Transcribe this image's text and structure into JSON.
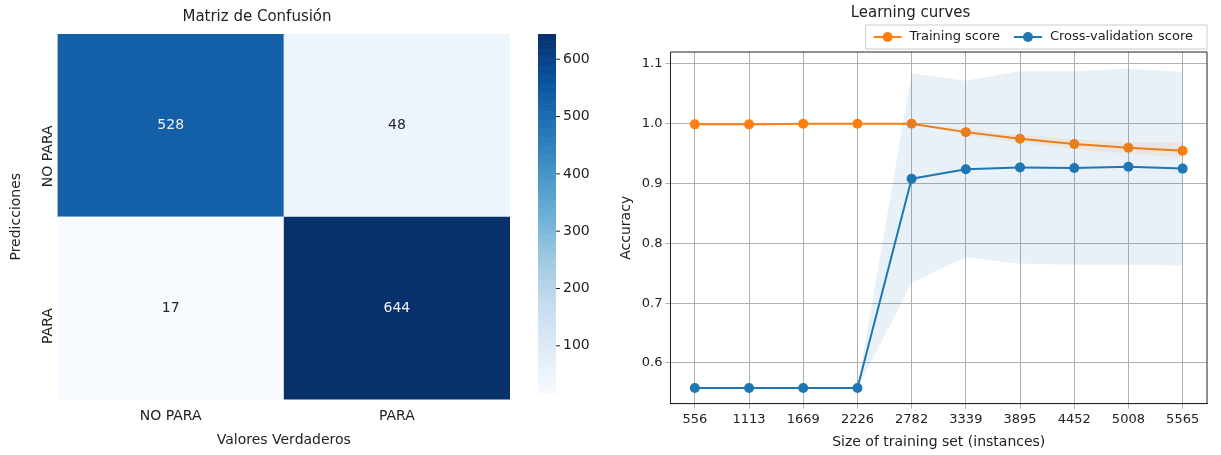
{
  "chart_data": [
    {
      "type": "heatmap",
      "title": "Matriz de Confusión",
      "xlabel": "Valores Verdaderos",
      "ylabel": "Predicciones",
      "categories": [
        "NO PARA",
        "PARA"
      ],
      "y_categories": [
        "NO PARA",
        "PARA"
      ],
      "cells": [
        [
          528,
          48
        ],
        [
          17,
          644
        ]
      ],
      "clim": [
        17,
        644
      ],
      "cticks": [
        100,
        200,
        300,
        400,
        500,
        600
      ],
      "data_labels": true
    },
    {
      "type": "line",
      "title": "Learning curves",
      "xlabel": "Size of training set (instances)",
      "ylabel": "Accuracy",
      "x": [
        556,
        1113,
        1669,
        2226,
        2782,
        3339,
        3895,
        4452,
        5008,
        5565
      ],
      "series": [
        {
          "name": "Training score",
          "color": "#ff7f0e",
          "values": [
            0.999,
            0.999,
            1.0,
            1.0,
            1.0,
            0.986,
            0.975,
            0.966,
            0.96,
            0.955
          ],
          "lower": [
            0.998,
            0.998,
            0.999,
            0.999,
            0.999,
            0.982,
            0.968,
            0.958,
            0.95,
            0.944
          ],
          "upper": [
            1.0,
            1.0,
            1.0,
            1.0,
            1.0,
            0.99,
            0.981,
            0.974,
            0.969,
            0.969
          ]
        },
        {
          "name": "Cross-validation score",
          "color": "#1f77b4",
          "values": [
            0.558,
            0.558,
            0.558,
            0.558,
            0.908,
            0.924,
            0.927,
            0.926,
            0.928,
            0.925
          ],
          "lower": [
            0.557,
            0.557,
            0.557,
            0.557,
            0.734,
            0.777,
            0.766,
            0.764,
            0.764,
            0.763
          ],
          "upper": [
            0.559,
            0.559,
            0.559,
            0.559,
            1.084,
            1.072,
            1.088,
            1.088,
            1.092,
            1.087
          ]
        }
      ],
      "xlim": [
        306,
        5815
      ],
      "ylim": [
        0.532,
        1.12
      ],
      "xticks": [
        556,
        1113,
        1669,
        2226,
        2782,
        3339,
        3895,
        4452,
        5008,
        5565
      ],
      "yticks": [
        0.6,
        0.7,
        0.8,
        0.9,
        {
          "value": 1.0,
          "label": "1.0"
        },
        1.1
      ],
      "grid": true,
      "legend": "top right",
      "marker": "circle"
    }
  ]
}
